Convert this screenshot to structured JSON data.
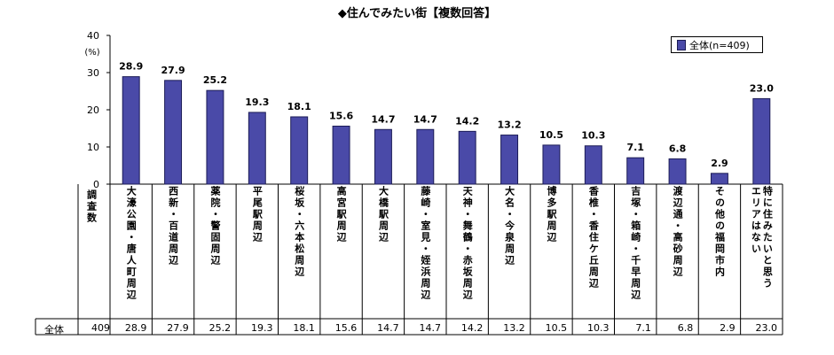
{
  "title": "◆住んでみたい街【複数回答】",
  "unit_label": "(%)",
  "stub_header": "調査数",
  "row_label": "全体",
  "sample_size": "409",
  "legend": {
    "label": "全体(n=409)"
  },
  "colors": {
    "bar_fill": "#4a4aa8",
    "bar_stroke": "#1c1c56",
    "axis": "#000000"
  },
  "chart_data": {
    "type": "bar",
    "title": "◆住んでみたい街【複数回答】",
    "ylabel": "(%)",
    "ylim": [
      0,
      40
    ],
    "yticks": [
      0,
      10,
      20,
      30,
      40
    ],
    "grid": false,
    "legend_position": "top-right",
    "categories": [
      "大濠公園・唐人町周辺",
      "西新・百道周辺",
      "薬院・警固周辺",
      "平尾駅周辺",
      "桜坂・六本松周辺",
      "高宮駅周辺",
      "大橋駅周辺",
      "藤崎・室見・姪浜周辺",
      "天神・舞鶴・赤坂周辺",
      "大名・今泉周辺",
      "博多駅周辺",
      "香椎・香住ケ丘周辺",
      "吉塚・箱崎・千早周辺",
      "渡辺通・高砂周辺",
      "その他の福岡市内",
      "特に住みたいと思う\nエリアはない"
    ],
    "series": [
      {
        "name": "全体(n=409)",
        "values": [
          28.9,
          27.9,
          25.2,
          19.3,
          18.1,
          15.6,
          14.7,
          14.7,
          14.2,
          13.2,
          10.5,
          10.3,
          7.1,
          6.8,
          2.9,
          23.0
        ]
      }
    ]
  }
}
